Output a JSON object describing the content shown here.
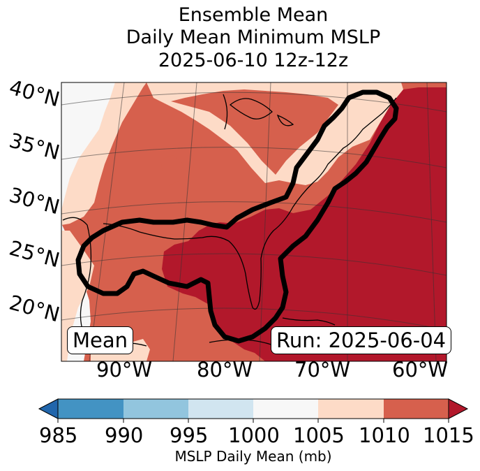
{
  "title": {
    "line1": "Ensemble Mean",
    "line2": "Daily Mean Minimum MSLP",
    "line3": "2025-06-10 12z-12z"
  },
  "map": {
    "lat_labels": [
      "40°N",
      "35°N",
      "30°N",
      "25°N",
      "20°N"
    ],
    "lon_labels": [
      "90°W",
      "80°W",
      "70°W",
      "60°W"
    ],
    "left_box_label": "Mean",
    "right_box_label": "Run: 2025-06-04"
  },
  "colorbar": {
    "label": "MSLP Daily Mean (mb)",
    "ticks": [
      "985",
      "990",
      "995",
      "1000",
      "1005",
      "1010",
      "1015"
    ],
    "colors": [
      "#2166ac",
      "#4393c3",
      "#92c5de",
      "#d1e5f0",
      "#f7f7f7",
      "#fddbc7",
      "#d6604d",
      "#b2182b"
    ],
    "bins": [
      {
        "from": 985,
        "to": 990,
        "color": "#4393c3"
      },
      {
        "from": 990,
        "to": 995,
        "color": "#92c5de"
      },
      {
        "from": 995,
        "to": 1000,
        "color": "#d1e5f0"
      },
      {
        "from": 1000,
        "to": 1005,
        "color": "#f7f7f7"
      },
      {
        "from": 1005,
        "to": 1010,
        "color": "#fddbc7"
      },
      {
        "from": 1010,
        "to": 1015,
        "color": "#d6604d"
      }
    ]
  }
}
